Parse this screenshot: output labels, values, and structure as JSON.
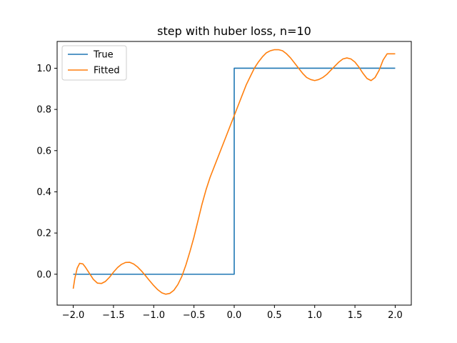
{
  "chart_data": {
    "type": "line",
    "title": "step with huber loss, n=10",
    "xlabel": "",
    "ylabel": "",
    "xlim": [
      -2.2,
      2.2
    ],
    "ylim": [
      -0.15,
      1.13
    ],
    "xticks": [
      -2.0,
      -1.5,
      -1.0,
      -0.5,
      0.0,
      0.5,
      1.0,
      1.5,
      2.0
    ],
    "xtick_labels": [
      "−2.0",
      "−1.5",
      "−1.0",
      "−0.5",
      "0.0",
      "0.5",
      "1.0",
      "1.5",
      "2.0"
    ],
    "yticks": [
      0.0,
      0.2,
      0.4,
      0.6,
      0.8,
      1.0
    ],
    "ytick_labels": [
      "0.0",
      "0.2",
      "0.4",
      "0.6",
      "0.8",
      "1.0"
    ],
    "grid": false,
    "legend_position": "top-left",
    "series": [
      {
        "name": "True",
        "color": "#1f77b4",
        "x": [
          -2.0,
          0.0,
          0.0,
          2.0
        ],
        "y": [
          0.0,
          0.0,
          1.0,
          1.0
        ]
      },
      {
        "name": "Fitted",
        "color": "#ff7f0e",
        "x": [
          -2.0,
          -1.98,
          -1.95,
          -1.92,
          -1.88,
          -1.85,
          -1.8,
          -1.75,
          -1.7,
          -1.65,
          -1.6,
          -1.55,
          -1.5,
          -1.45,
          -1.4,
          -1.35,
          -1.3,
          -1.25,
          -1.2,
          -1.15,
          -1.1,
          -1.05,
          -1.0,
          -0.95,
          -0.9,
          -0.85,
          -0.8,
          -0.75,
          -0.7,
          -0.65,
          -0.6,
          -0.55,
          -0.5,
          -0.45,
          -0.4,
          -0.35,
          -0.3,
          -0.25,
          -0.2,
          -0.15,
          -0.1,
          -0.05,
          0.0,
          0.05,
          0.1,
          0.15,
          0.2,
          0.25,
          0.3,
          0.35,
          0.4,
          0.45,
          0.5,
          0.55,
          0.6,
          0.65,
          0.7,
          0.75,
          0.8,
          0.85,
          0.9,
          0.95,
          1.0,
          1.05,
          1.1,
          1.15,
          1.2,
          1.25,
          1.3,
          1.35,
          1.4,
          1.45,
          1.5,
          1.55,
          1.6,
          1.65,
          1.7,
          1.75,
          1.8,
          1.85,
          1.9,
          1.93,
          1.96,
          1.98,
          2.0
        ],
        "y": [
          -0.07,
          -0.02,
          0.03,
          0.053,
          0.05,
          0.035,
          0.005,
          -0.025,
          -0.043,
          -0.045,
          -0.035,
          -0.015,
          0.01,
          0.032,
          0.048,
          0.057,
          0.058,
          0.05,
          0.035,
          0.015,
          -0.008,
          -0.032,
          -0.055,
          -0.075,
          -0.09,
          -0.097,
          -0.093,
          -0.078,
          -0.05,
          -0.01,
          0.045,
          0.11,
          0.18,
          0.26,
          0.34,
          0.41,
          0.47,
          0.52,
          0.57,
          0.62,
          0.67,
          0.72,
          0.77,
          0.82,
          0.87,
          0.92,
          0.96,
          1.0,
          1.03,
          1.055,
          1.075,
          1.085,
          1.09,
          1.09,
          1.085,
          1.07,
          1.05,
          1.025,
          1.0,
          0.975,
          0.955,
          0.945,
          0.94,
          0.945,
          0.955,
          0.97,
          0.99,
          1.01,
          1.03,
          1.045,
          1.05,
          1.045,
          1.03,
          1.005,
          0.975,
          0.95,
          0.94,
          0.955,
          0.99,
          1.04,
          1.07,
          1.07,
          1.07,
          1.07,
          1.07
        ]
      }
    ]
  }
}
